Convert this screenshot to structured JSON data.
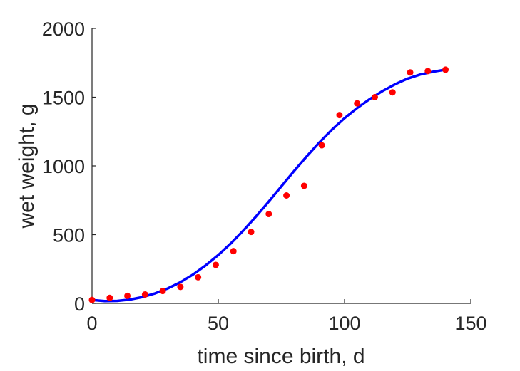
{
  "chart_data": {
    "type": "scatter",
    "title": "",
    "xlabel": "time since birth, d",
    "ylabel": "wet weight, g",
    "xlim": [
      0,
      150
    ],
    "ylim": [
      0,
      2000
    ],
    "xticks": [
      0,
      50,
      100,
      150
    ],
    "yticks": [
      0,
      500,
      1000,
      1500,
      2000
    ],
    "xtick_labels": [
      "0",
      "50",
      "100",
      "150"
    ],
    "ytick_labels": [
      "0",
      "500",
      "1000",
      "1500",
      "2000"
    ],
    "grid": false,
    "legend": "none",
    "series": [
      {
        "type": "scatter",
        "color": "#ff0000",
        "x": [
          0,
          7,
          14,
          21,
          28,
          35,
          42,
          49,
          56,
          63,
          70,
          77,
          84,
          91,
          98,
          105,
          112,
          119,
          126,
          133,
          140
        ],
        "y": [
          25,
          40,
          55,
          65,
          90,
          120,
          190,
          280,
          380,
          520,
          650,
          785,
          855,
          1150,
          1370,
          1455,
          1500,
          1535,
          1680,
          1690,
          1700
        ]
      },
      {
        "type": "line",
        "color": "#0000ff",
        "x": [
          0,
          5,
          10,
          15,
          20,
          25,
          30,
          35,
          40,
          45,
          50,
          55,
          60,
          65,
          70,
          75,
          80,
          85,
          90,
          95,
          100,
          105,
          110,
          115,
          120,
          125,
          130,
          135,
          140
        ],
        "y": [
          25,
          17,
          18,
          28,
          46,
          73,
          109,
          154,
          210,
          276,
          352,
          437,
          531,
          633,
          741,
          852,
          962,
          1069,
          1170,
          1263,
          1347,
          1421,
          1486,
          1544,
          1594,
          1635,
          1665,
          1685,
          1700
        ]
      }
    ]
  }
}
